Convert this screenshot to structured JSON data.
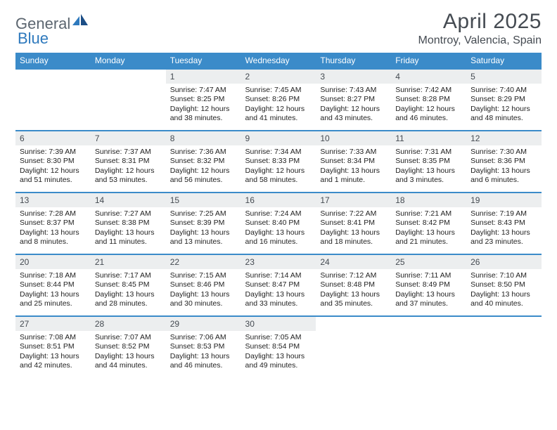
{
  "brand": {
    "general": "General",
    "blue": "Blue"
  },
  "title": "April 2025",
  "location": "Montroy, Valencia, Spain",
  "colors": {
    "header_bg": "#3b8bc9",
    "header_text": "#ffffff",
    "daynum_bg": "#eceeef",
    "rule": "#3b8bc9",
    "brand_gray": "#5c6670",
    "brand_blue": "#2e79bd",
    "title_color": "#454b52"
  },
  "weekdays": [
    "Sunday",
    "Monday",
    "Tuesday",
    "Wednesday",
    "Thursday",
    "Friday",
    "Saturday"
  ],
  "weeks": [
    [
      {
        "n": "",
        "rise": "",
        "set": "",
        "day": ""
      },
      {
        "n": "",
        "rise": "",
        "set": "",
        "day": ""
      },
      {
        "n": "1",
        "rise": "Sunrise: 7:47 AM",
        "set": "Sunset: 8:25 PM",
        "day": "Daylight: 12 hours and 38 minutes."
      },
      {
        "n": "2",
        "rise": "Sunrise: 7:45 AM",
        "set": "Sunset: 8:26 PM",
        "day": "Daylight: 12 hours and 41 minutes."
      },
      {
        "n": "3",
        "rise": "Sunrise: 7:43 AM",
        "set": "Sunset: 8:27 PM",
        "day": "Daylight: 12 hours and 43 minutes."
      },
      {
        "n": "4",
        "rise": "Sunrise: 7:42 AM",
        "set": "Sunset: 8:28 PM",
        "day": "Daylight: 12 hours and 46 minutes."
      },
      {
        "n": "5",
        "rise": "Sunrise: 7:40 AM",
        "set": "Sunset: 8:29 PM",
        "day": "Daylight: 12 hours and 48 minutes."
      }
    ],
    [
      {
        "n": "6",
        "rise": "Sunrise: 7:39 AM",
        "set": "Sunset: 8:30 PM",
        "day": "Daylight: 12 hours and 51 minutes."
      },
      {
        "n": "7",
        "rise": "Sunrise: 7:37 AM",
        "set": "Sunset: 8:31 PM",
        "day": "Daylight: 12 hours and 53 minutes."
      },
      {
        "n": "8",
        "rise": "Sunrise: 7:36 AM",
        "set": "Sunset: 8:32 PM",
        "day": "Daylight: 12 hours and 56 minutes."
      },
      {
        "n": "9",
        "rise": "Sunrise: 7:34 AM",
        "set": "Sunset: 8:33 PM",
        "day": "Daylight: 12 hours and 58 minutes."
      },
      {
        "n": "10",
        "rise": "Sunrise: 7:33 AM",
        "set": "Sunset: 8:34 PM",
        "day": "Daylight: 13 hours and 1 minute."
      },
      {
        "n": "11",
        "rise": "Sunrise: 7:31 AM",
        "set": "Sunset: 8:35 PM",
        "day": "Daylight: 13 hours and 3 minutes."
      },
      {
        "n": "12",
        "rise": "Sunrise: 7:30 AM",
        "set": "Sunset: 8:36 PM",
        "day": "Daylight: 13 hours and 6 minutes."
      }
    ],
    [
      {
        "n": "13",
        "rise": "Sunrise: 7:28 AM",
        "set": "Sunset: 8:37 PM",
        "day": "Daylight: 13 hours and 8 minutes."
      },
      {
        "n": "14",
        "rise": "Sunrise: 7:27 AM",
        "set": "Sunset: 8:38 PM",
        "day": "Daylight: 13 hours and 11 minutes."
      },
      {
        "n": "15",
        "rise": "Sunrise: 7:25 AM",
        "set": "Sunset: 8:39 PM",
        "day": "Daylight: 13 hours and 13 minutes."
      },
      {
        "n": "16",
        "rise": "Sunrise: 7:24 AM",
        "set": "Sunset: 8:40 PM",
        "day": "Daylight: 13 hours and 16 minutes."
      },
      {
        "n": "17",
        "rise": "Sunrise: 7:22 AM",
        "set": "Sunset: 8:41 PM",
        "day": "Daylight: 13 hours and 18 minutes."
      },
      {
        "n": "18",
        "rise": "Sunrise: 7:21 AM",
        "set": "Sunset: 8:42 PM",
        "day": "Daylight: 13 hours and 21 minutes."
      },
      {
        "n": "19",
        "rise": "Sunrise: 7:19 AM",
        "set": "Sunset: 8:43 PM",
        "day": "Daylight: 13 hours and 23 minutes."
      }
    ],
    [
      {
        "n": "20",
        "rise": "Sunrise: 7:18 AM",
        "set": "Sunset: 8:44 PM",
        "day": "Daylight: 13 hours and 25 minutes."
      },
      {
        "n": "21",
        "rise": "Sunrise: 7:17 AM",
        "set": "Sunset: 8:45 PM",
        "day": "Daylight: 13 hours and 28 minutes."
      },
      {
        "n": "22",
        "rise": "Sunrise: 7:15 AM",
        "set": "Sunset: 8:46 PM",
        "day": "Daylight: 13 hours and 30 minutes."
      },
      {
        "n": "23",
        "rise": "Sunrise: 7:14 AM",
        "set": "Sunset: 8:47 PM",
        "day": "Daylight: 13 hours and 33 minutes."
      },
      {
        "n": "24",
        "rise": "Sunrise: 7:12 AM",
        "set": "Sunset: 8:48 PM",
        "day": "Daylight: 13 hours and 35 minutes."
      },
      {
        "n": "25",
        "rise": "Sunrise: 7:11 AM",
        "set": "Sunset: 8:49 PM",
        "day": "Daylight: 13 hours and 37 minutes."
      },
      {
        "n": "26",
        "rise": "Sunrise: 7:10 AM",
        "set": "Sunset: 8:50 PM",
        "day": "Daylight: 13 hours and 40 minutes."
      }
    ],
    [
      {
        "n": "27",
        "rise": "Sunrise: 7:08 AM",
        "set": "Sunset: 8:51 PM",
        "day": "Daylight: 13 hours and 42 minutes."
      },
      {
        "n": "28",
        "rise": "Sunrise: 7:07 AM",
        "set": "Sunset: 8:52 PM",
        "day": "Daylight: 13 hours and 44 minutes."
      },
      {
        "n": "29",
        "rise": "Sunrise: 7:06 AM",
        "set": "Sunset: 8:53 PM",
        "day": "Daylight: 13 hours and 46 minutes."
      },
      {
        "n": "30",
        "rise": "Sunrise: 7:05 AM",
        "set": "Sunset: 8:54 PM",
        "day": "Daylight: 13 hours and 49 minutes."
      },
      {
        "n": "",
        "rise": "",
        "set": "",
        "day": ""
      },
      {
        "n": "",
        "rise": "",
        "set": "",
        "day": ""
      },
      {
        "n": "",
        "rise": "",
        "set": "",
        "day": ""
      }
    ]
  ]
}
